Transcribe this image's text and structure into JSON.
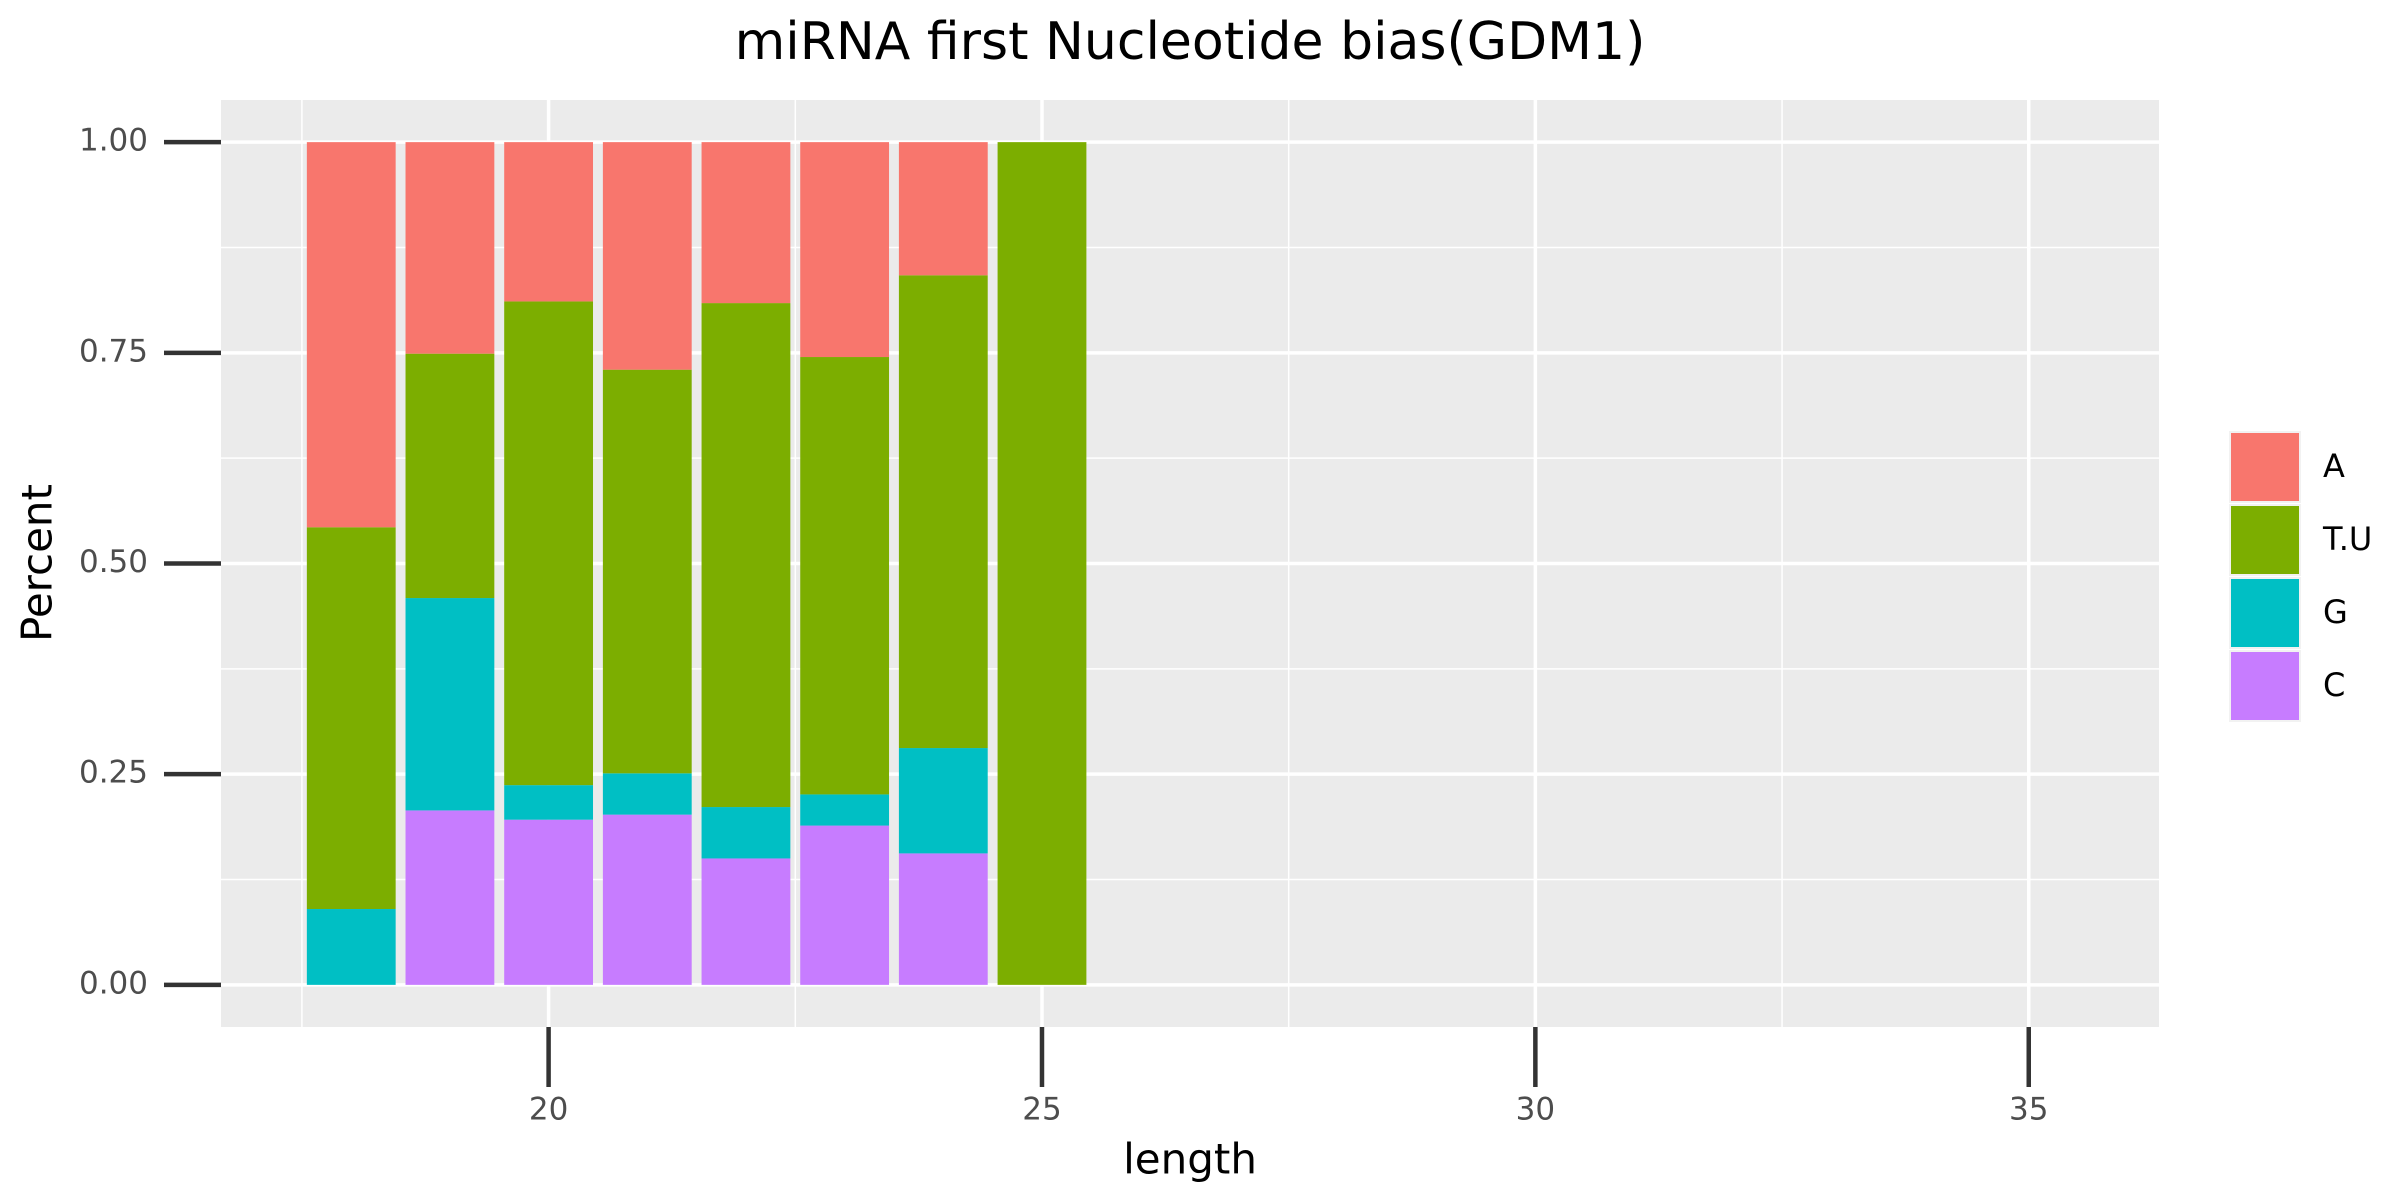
{
  "chart_data": {
    "type": "stacked_bar",
    "title": "miRNA first Nucleotide bias(GDM1)",
    "x_label": "length",
    "y_label": "Percent",
    "x": [
      18,
      19,
      20,
      21,
      22,
      23,
      24,
      25
    ],
    "series": [
      {
        "name": "A",
        "color": "#f8766d",
        "values": [
          0.457,
          0.251,
          0.189,
          0.27,
          0.191,
          0.255,
          0.158,
          0
        ]
      },
      {
        "name": "T.U",
        "color": "#7cae00",
        "values": [
          0.453,
          0.29,
          0.574,
          0.479,
          0.598,
          0.519,
          0.561,
          1
        ]
      },
      {
        "name": "G",
        "color": "#00bfc4",
        "values": [
          0.09,
          0.252,
          0.041,
          0.049,
          0.061,
          0.037,
          0.125,
          0
        ]
      },
      {
        "name": "C",
        "color": "#c77cff",
        "values": [
          0,
          0.207,
          0.196,
          0.202,
          0.15,
          0.189,
          0.156,
          0
        ]
      }
    ],
    "xlim": [
      16.68,
      36.32
    ],
    "ylim": [
      -0.05,
      1.05
    ],
    "xticks": [
      20,
      25,
      30,
      35
    ],
    "yticks": [
      {
        "value": 0,
        "label": "0.00"
      },
      {
        "value": 0.25,
        "label": "0.25"
      },
      {
        "value": 0.5,
        "label": "0.50"
      },
      {
        "value": 0.75,
        "label": "0.75"
      },
      {
        "value": 1,
        "label": "1.00"
      }
    ],
    "grid": true,
    "legend": "right"
  }
}
